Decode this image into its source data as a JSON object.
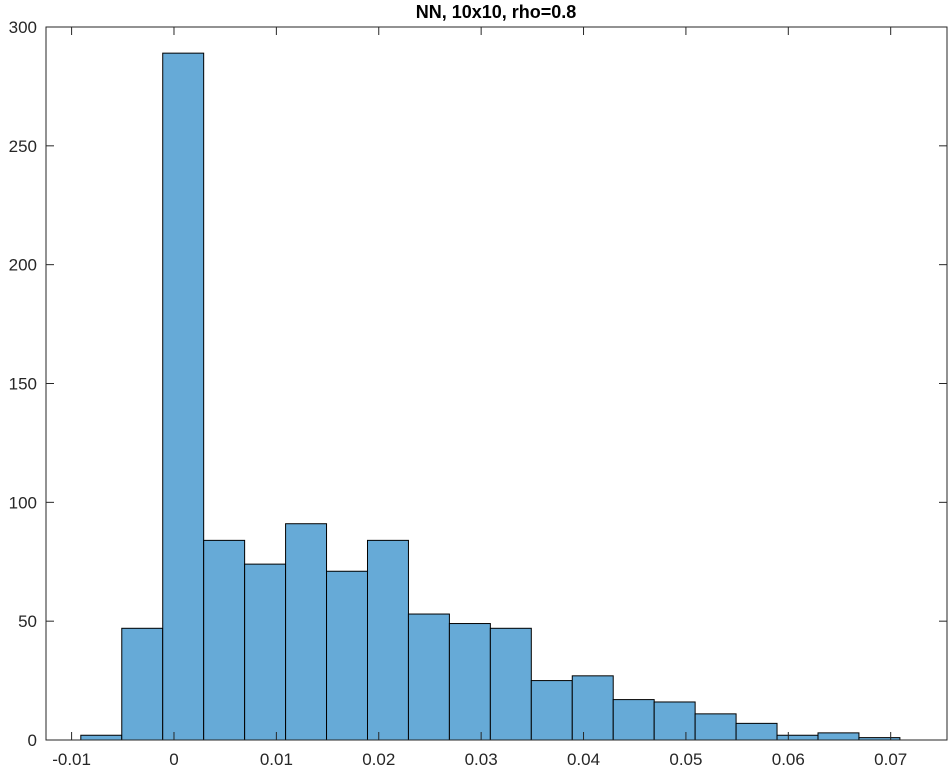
{
  "chart_data": {
    "type": "bar",
    "title": "NN, 10x10, rho=0.8",
    "xlabel": "",
    "ylabel": "",
    "xlim": [
      -0.0125,
      0.0755
    ],
    "ylim": [
      0,
      300
    ],
    "x_ticks": [
      -0.01,
      0,
      0.01,
      0.02,
      0.03,
      0.04,
      0.05,
      0.06,
      0.07
    ],
    "x_tick_labels": [
      "-0.01",
      "0",
      "0.01",
      "0.02",
      "0.03",
      "0.04",
      "0.05",
      "0.06",
      "0.07"
    ],
    "y_ticks": [
      0,
      50,
      100,
      150,
      200,
      250,
      300
    ],
    "y_tick_labels": [
      "0",
      "50",
      "100",
      "150",
      "200",
      "250",
      "300"
    ],
    "grid": false,
    "bin_edges": [
      -0.0091,
      -0.0051,
      -0.0011,
      0.0029,
      0.0069,
      0.0109,
      0.0149,
      0.0189,
      0.0229,
      0.0269,
      0.0309,
      0.0349,
      0.0389,
      0.0429,
      0.0469,
      0.0509,
      0.0549,
      0.0589,
      0.0629,
      0.0669,
      0.0709
    ],
    "values": [
      2,
      47,
      289,
      84,
      74,
      91,
      71,
      84,
      53,
      49,
      47,
      25,
      27,
      17,
      16,
      11,
      7,
      2,
      3,
      1
    ],
    "colors": {
      "bar_fill": "#66aad7",
      "bar_edge": "#000000",
      "axis": "#262626",
      "background": "#ffffff"
    }
  }
}
